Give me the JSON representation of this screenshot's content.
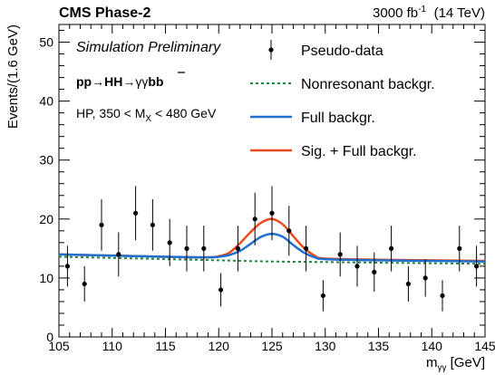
{
  "chart_data": {
    "type": "scatter",
    "experiment": "CMS Phase-2",
    "luminosity_label": "3000 fb",
    "luminosity_exponent": "-1",
    "energy_label": "(14 TeV)",
    "simulation_label": "Simulation Preliminary",
    "process": {
      "prefix": "pp",
      "arrow1": "→",
      "middle": "HH",
      "arrow2": "→",
      "photons": "γγ",
      "b": "b",
      "bbar": "b"
    },
    "category": {
      "prefix": "HP, 350 < M",
      "subscript": "X",
      "suffix": " < 480 GeV"
    },
    "ylabel": "Events/(1.6 GeV)",
    "xlabel_main": "m",
    "xlabel_sub": "γγ",
    "xlabel_unit": " [GeV]",
    "xlim": [
      105,
      145
    ],
    "ylim": [
      0,
      53
    ],
    "xticks": [
      105,
      110,
      115,
      120,
      125,
      130,
      135,
      140,
      145
    ],
    "yticks": [
      0,
      10,
      20,
      30,
      40,
      50
    ],
    "grid": false,
    "legend_position": "top-right",
    "legend": [
      {
        "label": "Pseudo-data",
        "kind": "marker"
      },
      {
        "label": "Nonresonant backgr.",
        "kind": "dashed",
        "color": "#1a8a3a"
      },
      {
        "label": "Full backgr.",
        "kind": "line",
        "color": "#1f6fd0"
      },
      {
        "label": "Sig. + Full backgr.",
        "kind": "line",
        "color": "#ee4a1c"
      }
    ],
    "pseudo_data": {
      "x": [
        105.8,
        107.4,
        109.0,
        110.6,
        112.2,
        113.8,
        115.4,
        117.0,
        118.6,
        120.2,
        121.8,
        123.4,
        125.0,
        126.6,
        128.2,
        129.8,
        131.4,
        133.0,
        134.6,
        136.2,
        137.8,
        139.4,
        141.0,
        142.6,
        144.2
      ],
      "y": [
        12,
        9,
        19,
        14,
        21,
        19,
        16,
        15,
        15,
        8,
        15,
        20,
        21,
        18,
        15,
        7,
        14,
        12,
        11,
        15,
        9,
        10,
        7,
        15,
        12
      ]
    },
    "models": {
      "nonresonant_background": {
        "color": "#1a8a3a",
        "x": [
          105,
          110,
          115,
          120,
          125,
          130,
          135,
          140,
          145
        ],
        "y": [
          13.6,
          13.4,
          13.2,
          13.0,
          12.8,
          12.7,
          12.6,
          12.5,
          12.4
        ]
      },
      "full_background": {
        "color": "#1f6fd0",
        "x": [
          105,
          115,
          119,
          120,
          121,
          122,
          123,
          124,
          125,
          126,
          127,
          128,
          129,
          130,
          135,
          140,
          145
        ],
        "y": [
          14.0,
          13.6,
          13.5,
          13.6,
          13.9,
          14.6,
          15.8,
          17.0,
          17.5,
          17.0,
          15.6,
          14.3,
          13.5,
          13.2,
          13.0,
          12.9,
          12.8
        ]
      },
      "signal_plus_full_background": {
        "color": "#ee4a1c",
        "x": [
          105,
          115,
          119,
          120,
          121,
          122,
          123,
          124,
          125,
          126,
          127,
          128,
          129,
          130,
          135,
          140,
          145
        ],
        "y": [
          14.0,
          13.6,
          13.5,
          13.7,
          14.3,
          15.9,
          17.8,
          19.4,
          20.0,
          19.1,
          17.1,
          15.1,
          13.8,
          13.3,
          13.1,
          13.0,
          12.9
        ]
      }
    }
  }
}
